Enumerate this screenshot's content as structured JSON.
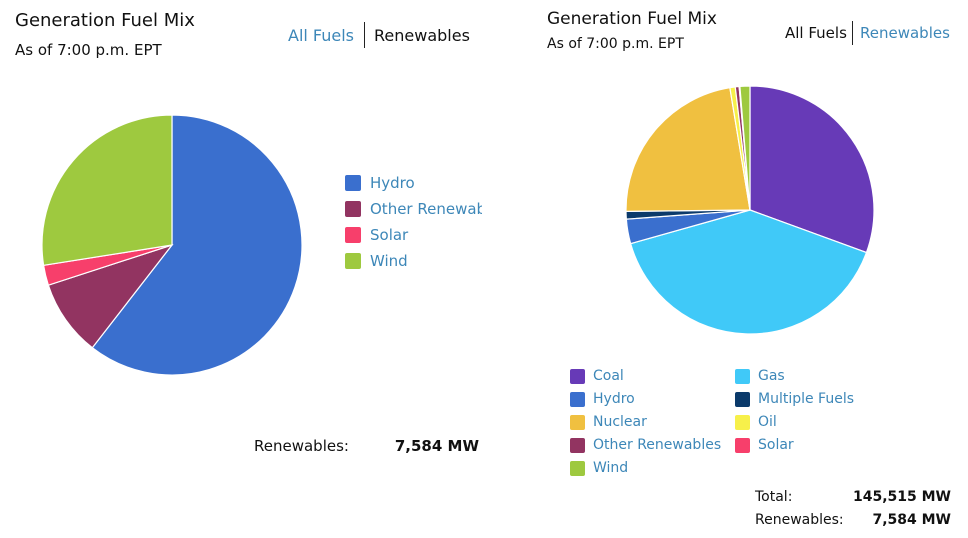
{
  "left_panel": {
    "title": "Generation Fuel Mix",
    "subtitle": "As of 7:00 p.m. EPT",
    "tabs": [
      {
        "label": "All Fuels",
        "active": false
      },
      {
        "label": "Renewables",
        "active": true
      }
    ],
    "totals": [
      {
        "label": "Renewables:",
        "value": "7,584 MW"
      }
    ]
  },
  "right_panel": {
    "title": "Generation Fuel Mix",
    "subtitle": "As of 7:00 p.m. EPT",
    "tabs": [
      {
        "label": "All Fuels",
        "active": true
      },
      {
        "label": "Renewables",
        "active": false
      }
    ],
    "totals": [
      {
        "label": "Total:",
        "value": "145,515 MW"
      },
      {
        "label": "Renewables:",
        "value": "7,584 MW"
      }
    ]
  },
  "colors": {
    "Coal": "#673ab7",
    "Gas": "#40c9f8",
    "Hydro": "#3a6fce",
    "Multiple Fuels": "#0b3a6b",
    "Nuclear": "#f0c040",
    "Oil": "#f7f04a",
    "Other Renewables": "#923461",
    "Solar": "#f73f6b",
    "Wind": "#9ec93f",
    "link": "#3d87b8"
  },
  "chart_data": [
    {
      "type": "pie",
      "title": "Generation Fuel Mix",
      "subtitle": "As of 7:00 p.m. EPT",
      "legend": "right",
      "legend_labels": [
        "Hydro",
        "Other Renewab",
        "Solar",
        "Wind"
      ],
      "slices": [
        {
          "name": "Hydro",
          "percent": 60.5
        },
        {
          "name": "Other Renewables",
          "percent": 9.5
        },
        {
          "name": "Solar",
          "percent": 2.5
        },
        {
          "name": "Wind",
          "percent": 27.5
        }
      ]
    },
    {
      "type": "pie",
      "title": "Generation Fuel Mix",
      "subtitle": "As of 7:00 p.m. EPT",
      "legend": "bottom",
      "legend_labels": [
        "Coal",
        "Gas",
        "Hydro",
        "Multiple Fuels",
        "Nuclear",
        "Oil",
        "Other Renewables",
        "Solar",
        "Wind"
      ],
      "slices": [
        {
          "name": "Coal",
          "percent": 30.6
        },
        {
          "name": "Gas",
          "percent": 40.1
        },
        {
          "name": "Hydro",
          "percent": 3.2
        },
        {
          "name": "Multiple Fuels",
          "percent": 1.0
        },
        {
          "name": "Nuclear",
          "percent": 22.6
        },
        {
          "name": "Oil",
          "percent": 0.7
        },
        {
          "name": "Other Renewables",
          "percent": 0.5
        },
        {
          "name": "Solar",
          "percent": 0.1
        },
        {
          "name": "Wind",
          "percent": 1.3
        }
      ]
    }
  ]
}
